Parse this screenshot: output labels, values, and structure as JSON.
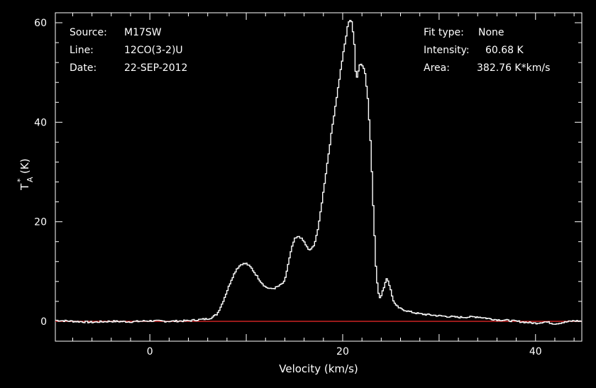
{
  "header": {
    "source_label": "Source:",
    "source_value": "M17SW",
    "line_label": "Line:",
    "line_value": "12CO(3-2)U",
    "date_label": "Date:",
    "date_value": "22-SEP-2012",
    "fit_label": "Fit type:",
    "fit_value": "None",
    "intensity_label": "Intensity:",
    "intensity_value": "60.68 K",
    "area_label": "Area:",
    "area_value": "382.76 K*km/s"
  },
  "colors": {
    "background": "#000000",
    "foreground": "#ffffff",
    "baseline": "#cc2222"
  },
  "chart_data": {
    "type": "line",
    "xlabel": "Velocity (km/s)",
    "ylabel_main": "T",
    "ylabel_sup": "*",
    "ylabel_sub": "A",
    "ylabel_unit": "(K)",
    "xlim": [
      -9.8,
      44.8
    ],
    "ylim": [
      -4,
      62
    ],
    "xticks": [
      0,
      20,
      40
    ],
    "yticks": [
      0,
      20,
      40,
      60
    ],
    "baseline_y": 0,
    "grid": false,
    "series": [
      {
        "style": "step",
        "x": [
          -9.8,
          -8.0,
          -6.0,
          -4.0,
          -2.0,
          0.0,
          2.0,
          4.0,
          5.0,
          6.0,
          6.5,
          7.0,
          7.5,
          8.0,
          8.5,
          9.0,
          9.5,
          10.0,
          10.5,
          11.0,
          11.5,
          12.0,
          12.5,
          13.0,
          13.5,
          14.0,
          14.3,
          14.7,
          15.0,
          15.5,
          16.0,
          16.5,
          17.0,
          17.5,
          18.0,
          18.5,
          19.0,
          19.5,
          20.0,
          20.3,
          20.6,
          20.9,
          21.2,
          21.4,
          21.6,
          21.8,
          22.0,
          22.3,
          22.6,
          22.9,
          23.2,
          23.5,
          23.8,
          24.0,
          24.3,
          24.6,
          24.9,
          25.2,
          25.5,
          26.0,
          27.0,
          28.0,
          30.0,
          32.0,
          34.0,
          35.0,
          36.0,
          37.0,
          38.0,
          39.0,
          40.0,
          41.0,
          42.0,
          43.0,
          44.0,
          44.8
        ],
        "y": [
          0.2,
          0.0,
          -0.2,
          0.0,
          -0.1,
          0.1,
          0.0,
          0.1,
          0.3,
          0.5,
          0.8,
          1.5,
          3.5,
          6.0,
          8.5,
          10.5,
          11.5,
          11.6,
          10.8,
          9.4,
          8.0,
          6.9,
          6.5,
          6.7,
          7.2,
          8.0,
          11.0,
          14.5,
          16.5,
          17.1,
          16.0,
          14.2,
          15.0,
          19.0,
          26.0,
          33.0,
          40.0,
          46.5,
          53.0,
          56.5,
          60.2,
          60.7,
          56.0,
          48.5,
          50.0,
          51.9,
          51.5,
          50.5,
          45.0,
          36.0,
          22.0,
          9.0,
          4.8,
          5.0,
          7.0,
          8.8,
          7.0,
          4.5,
          3.2,
          2.5,
          1.9,
          1.5,
          1.1,
          0.8,
          0.9,
          0.6,
          0.3,
          0.2,
          0.0,
          -0.2,
          -0.4,
          -0.1,
          -0.5,
          -0.2,
          0.1,
          0.0
        ]
      }
    ]
  }
}
